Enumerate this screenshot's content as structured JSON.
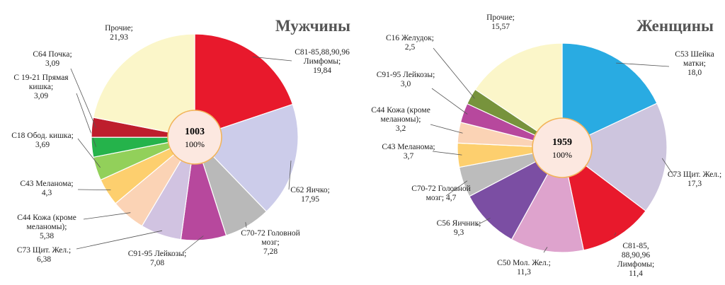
{
  "chart_data": [
    {
      "type": "pie",
      "title": "Мужчины",
      "center_total": "1003",
      "center_percent": "100%",
      "slices": [
        {
          "label_lines": [
            "C81-85,88,90,96",
            "Лимфомы;",
            "19,84"
          ],
          "value": 19.84,
          "color": "#e8192c"
        },
        {
          "label_lines": [
            "C62 Яичко;",
            "17,95"
          ],
          "value": 17.95,
          "color": "#ccccea"
        },
        {
          "label_lines": [
            "C70-72 Головной",
            "мозг;",
            "7,28"
          ],
          "value": 7.28,
          "color": "#b9b9b9"
        },
        {
          "label_lines": [
            "C91-95 Лейкозы;",
            "7,08"
          ],
          "value": 7.08,
          "color": "#b7489d"
        },
        {
          "label_lines": [
            "C73 Щит. Жел.;",
            "6,38"
          ],
          "value": 6.38,
          "color": "#d1c3e1"
        },
        {
          "label_lines": [
            "C44 Кожа (кроме",
            "меланомы);",
            "5,38"
          ],
          "value": 5.38,
          "color": "#fbd3b5"
        },
        {
          "label_lines": [
            "C43 Меланома;",
            "4,3"
          ],
          "value": 4.3,
          "color": "#fdcf6e"
        },
        {
          "label_lines": [
            "C18 Обод. кишка;",
            "3,69"
          ],
          "value": 3.69,
          "color": "#92d05a"
        },
        {
          "label_lines": [
            "C 19-21 Прямая",
            "кишка;",
            "3,09"
          ],
          "value": 3.09,
          "color": "#25b34b"
        },
        {
          "label_lines": [
            "C64 Почка;",
            "3,09"
          ],
          "value": 3.09,
          "color": "#be1e2d"
        },
        {
          "label_lines": [
            "Прочие;",
            "21,93"
          ],
          "value": 21.93,
          "color": "#fbf6c9"
        }
      ]
    },
    {
      "type": "pie",
      "title": "Женщины",
      "center_total": "1959",
      "center_percent": "100%",
      "slices": [
        {
          "label_lines": [
            "C53 Шейка",
            "матки;",
            "18,0"
          ],
          "value": 18.0,
          "color": "#29abe2"
        },
        {
          "label_lines": [
            "C73 Щит. Жел.;",
            "17,3"
          ],
          "value": 17.3,
          "color": "#cdc5de"
        },
        {
          "label_lines": [
            "C81-85,",
            "88,90,96",
            "Лимфомы;",
            "11,4"
          ],
          "value": 11.4,
          "color": "#e8192c"
        },
        {
          "label_lines": [
            "C50 Мол. Жел.;",
            "11,3"
          ],
          "value": 11.3,
          "color": "#dea3cd"
        },
        {
          "label_lines": [
            "C56 Яичник;",
            "9,3"
          ],
          "value": 9.3,
          "color": "#7b4ea3"
        },
        {
          "label_lines": [
            "C70-72 Головной",
            "мозг; 4,7"
          ],
          "value": 4.7,
          "color": "#bcbcbc"
        },
        {
          "label_lines": [
            "C43 Меланома;",
            "3,7"
          ],
          "value": 3.7,
          "color": "#fdcf6e"
        },
        {
          "label_lines": [
            "C44 Кожа (кроме",
            "меланомы);",
            "3,2"
          ],
          "value": 3.2,
          "color": "#fbd3b5"
        },
        {
          "label_lines": [
            "C91-95 Лейкозы;",
            "3,0"
          ],
          "value": 3.0,
          "color": "#b7489d"
        },
        {
          "label_lines": [
            "C16 Желудок;",
            "2,5"
          ],
          "value": 2.5,
          "color": "#77933c"
        },
        {
          "label_lines": [
            "Прочие;",
            "15,57"
          ],
          "value": 15.57,
          "color": "#fbf6c9"
        }
      ]
    }
  ]
}
